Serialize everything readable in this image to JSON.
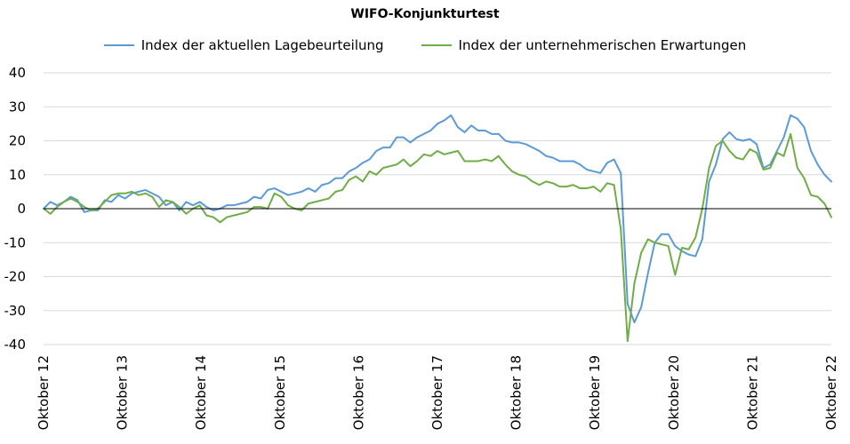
{
  "chart_data": {
    "type": "line",
    "title": "WIFO-Konjunkturtest",
    "xlabel": "",
    "ylabel": "",
    "ylim": [
      -40,
      40
    ],
    "yticks": [
      -40,
      -30,
      -20,
      -10,
      0,
      10,
      20,
      30,
      40
    ],
    "x_tick_labels": [
      "Oktober 12",
      "Oktober 13",
      "Oktober 14",
      "Oktober 15",
      "Oktober 16",
      "Oktober 17",
      "Oktober 18",
      "Oktober 19",
      "Oktober 20",
      "Oktober 21",
      "Oktober 22"
    ],
    "grid": "horizontal",
    "legend_position": "top",
    "x_start": "2012-10",
    "x_end": "2022-10",
    "series": [
      {
        "name": "Index der aktuellen Lagebeurteilung",
        "color": "#5b9bd5",
        "values": [
          0,
          2,
          1,
          2,
          3.5,
          2.5,
          -1,
          -0.5,
          -0.5,
          2.5,
          2,
          4,
          3,
          4.5,
          5,
          5.5,
          4.5,
          3.5,
          1,
          2,
          -0.5,
          2,
          1,
          2,
          0.5,
          -0.5,
          0,
          1,
          1,
          1.5,
          2,
          3.5,
          3,
          5.5,
          6,
          5,
          4,
          4.5,
          5,
          6,
          5,
          7,
          7.5,
          9,
          9,
          11,
          12,
          13.5,
          14.5,
          17,
          18,
          18,
          21,
          21,
          19.5,
          21,
          22,
          23,
          25,
          26,
          27.5,
          24,
          22.5,
          24.5,
          23,
          23,
          22,
          22,
          20,
          19.5,
          19.5,
          19,
          18,
          17,
          15.5,
          15,
          14,
          14,
          14,
          13,
          11.5,
          11,
          10.5,
          13.5,
          14.5,
          10.5,
          -28,
          -33.5,
          -29,
          -19,
          -10,
          -7.5,
          -7.5,
          -11,
          -12.5,
          -13.5,
          -14,
          -9,
          8,
          13,
          20.5,
          22.5,
          20.5,
          20,
          20.5,
          19,
          12,
          13,
          17,
          21,
          27.5,
          26.5,
          24,
          17,
          13,
          10,
          8
        ]
      },
      {
        "name": "Index der unternehmerischen Erwartungen",
        "color": "#70ad47",
        "values": [
          0,
          -1.5,
          0.5,
          2,
          3,
          2,
          0.5,
          -0.5,
          0,
          2,
          4,
          4.5,
          4.5,
          5,
          4,
          4.5,
          3.5,
          0.5,
          2.5,
          2,
          0.5,
          -1.5,
          0,
          1,
          -2,
          -2.5,
          -4,
          -2.5,
          -2,
          -1.5,
          -1,
          0.5,
          0.5,
          0,
          4.5,
          3.5,
          1,
          0,
          -0.5,
          1.5,
          2,
          2.5,
          3,
          5,
          5.5,
          8.5,
          9.5,
          8,
          11,
          10,
          12,
          12.5,
          13,
          14.5,
          12.5,
          14,
          16,
          15.5,
          17,
          16,
          16.5,
          17,
          14,
          14,
          14,
          14.5,
          14,
          15.5,
          13,
          11,
          10,
          9.5,
          8,
          7,
          8,
          7.5,
          6.5,
          6.5,
          7,
          6,
          6,
          6.5,
          5,
          7.5,
          7,
          -6,
          -39,
          -22,
          -13,
          -9,
          -10,
          -10.5,
          -11,
          -19.5,
          -11.5,
          -12,
          -8.5,
          0,
          12,
          18.5,
          20,
          17,
          15,
          14.5,
          17.5,
          16.5,
          11.5,
          12,
          16.5,
          15.5,
          22,
          12,
          9,
          4,
          3.5,
          1.5,
          -2.5
        ]
      }
    ]
  }
}
